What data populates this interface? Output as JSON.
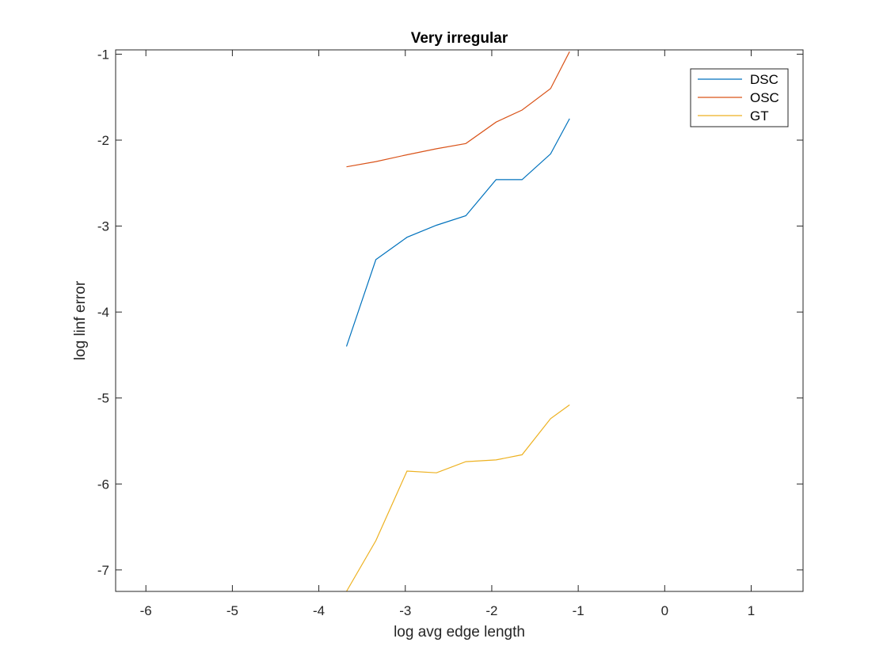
{
  "chart_data": {
    "type": "line",
    "title": "Very irregular",
    "xlabel": "log avg edge length",
    "ylabel": "log linf error",
    "xlim": [
      -6.35,
      1.6
    ],
    "ylim": [
      -7.25,
      -0.95
    ],
    "xticks": [
      -6,
      -5,
      -4,
      -3,
      -2,
      -1,
      0,
      1
    ],
    "yticks": [
      -7,
      -6,
      -5,
      -4,
      -3,
      -2,
      -1
    ],
    "xtick_labels": [
      "-6",
      "-5",
      "-4",
      "-3",
      "-2",
      "-1",
      "0",
      "1"
    ],
    "ytick_labels": [
      "-7",
      "-6",
      "-5",
      "-4",
      "-3",
      "-2",
      "-1"
    ],
    "grid": false,
    "legend_position": "top-right",
    "series": [
      {
        "name": "DSC",
        "color": "#0072BD",
        "x": [
          -3.68,
          -3.34,
          -2.98,
          -2.64,
          -2.3,
          -1.95,
          -1.65,
          -1.32,
          -1.1
        ],
        "y": [
          -4.4,
          -3.39,
          -3.13,
          -2.99,
          -2.88,
          -2.46,
          -2.46,
          -2.16,
          -1.75
        ]
      },
      {
        "name": "OSC",
        "color": "#D95319",
        "x": [
          -3.68,
          -3.34,
          -2.98,
          -2.64,
          -2.3,
          -1.95,
          -1.65,
          -1.32,
          -1.1
        ],
        "y": [
          -2.31,
          -2.25,
          -2.17,
          -2.1,
          -2.04,
          -1.79,
          -1.65,
          -1.4,
          -0.97
        ]
      },
      {
        "name": "GT",
        "color": "#EDB120",
        "x": [
          -3.68,
          -3.34,
          -2.98,
          -2.64,
          -2.3,
          -1.95,
          -1.65,
          -1.32,
          -1.1
        ],
        "y": [
          -7.25,
          -6.66,
          -5.85,
          -5.87,
          -5.74,
          -5.72,
          -5.66,
          -5.24,
          -5.08
        ]
      }
    ]
  }
}
